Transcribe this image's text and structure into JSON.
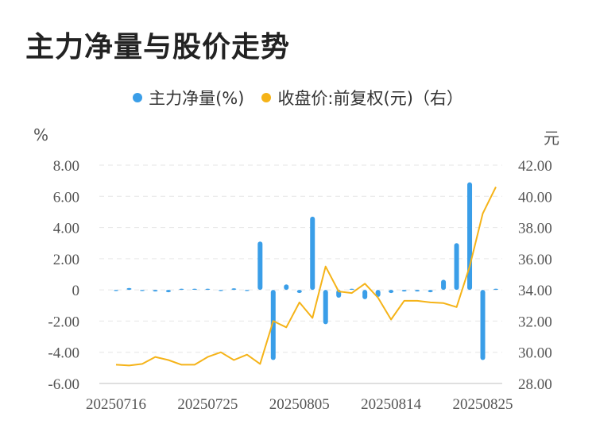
{
  "title": "主力净量与股价走势",
  "legend": {
    "series1_label": "主力净量(%)",
    "series2_label": "收盘价:前复权(元)（右）"
  },
  "units": {
    "left": "%",
    "right": "元"
  },
  "colors": {
    "bar": "#3a9ee8",
    "line": "#f5b318",
    "grid": "#e6e6e6",
    "axis_text": "#555555"
  },
  "chart_data": {
    "type": "bar+line",
    "x_labels_shown": [
      "20250716",
      "20250725",
      "20250805",
      "20250814",
      "20250825"
    ],
    "x_label_indices": [
      0,
      7,
      14,
      21,
      28
    ],
    "n_points": 30,
    "left_axis": {
      "ticks": [
        "8.00",
        "6.00",
        "4.00",
        "2.00",
        "0",
        "-2.00",
        "-4.00",
        "-6.00"
      ],
      "ylim": [
        -6,
        8
      ]
    },
    "right_axis": {
      "ticks": [
        "42.00",
        "40.00",
        "38.00",
        "36.00",
        "34.00",
        "32.00",
        "30.00",
        "28.00"
      ],
      "ylim": [
        28,
        42
      ]
    },
    "series": [
      {
        "name": "主力净量(%)",
        "type": "bar",
        "values": [
          -0.05,
          0.12,
          -0.05,
          -0.1,
          -0.15,
          0.05,
          0.0,
          0.05,
          -0.05,
          0.1,
          -0.05,
          3.1,
          -4.5,
          0.35,
          -0.2,
          4.7,
          -2.2,
          -0.5,
          0.0,
          -0.6,
          -0.45,
          -0.2,
          -0.1,
          -0.1,
          -0.15,
          0.65,
          3.0,
          6.9,
          -4.5,
          0.0
        ]
      },
      {
        "name": "收盘价:前复权(元)（右）",
        "type": "line",
        "values": [
          29.2,
          29.15,
          29.25,
          29.7,
          29.5,
          29.2,
          29.2,
          29.7,
          30.0,
          29.5,
          29.85,
          29.25,
          32.0,
          31.6,
          33.2,
          32.2,
          35.5,
          33.9,
          33.8,
          34.4,
          33.5,
          32.1,
          33.3,
          33.3,
          33.2,
          33.15,
          32.9,
          35.5,
          38.9,
          40.6
        ]
      }
    ]
  }
}
